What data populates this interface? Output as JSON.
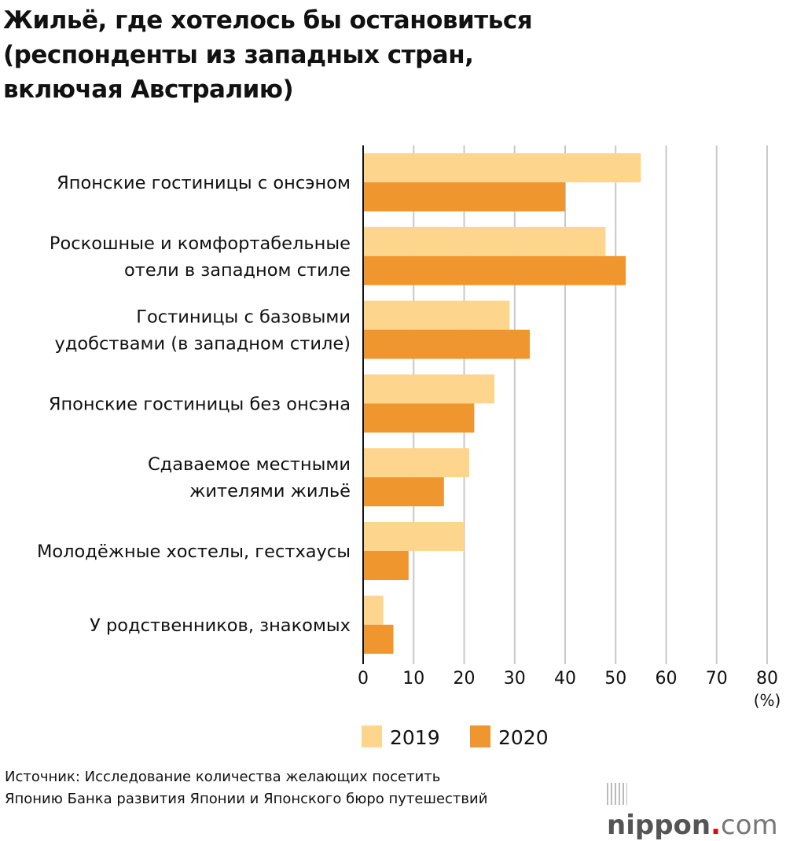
{
  "title_lines": [
    "Жильё, где хотелось бы остановиться",
    "(респонденты из западных стран,",
    "включая Австралию)"
  ],
  "chart_data": {
    "type": "bar",
    "orientation": "horizontal",
    "title": "Жильё, где хотелось бы остановиться (респонденты из западных стран, включая Австралию)",
    "categories": [
      [
        "Японские гостиницы с онсэном"
      ],
      [
        "Роскошные и комфортабельные",
        "отели в западном стиле"
      ],
      [
        "Гостиницы с базовыми",
        "удобствами (в западном стиле)"
      ],
      [
        "Японские гостиницы без онсэна"
      ],
      [
        "Сдаваемое местными",
        "жителями жильё"
      ],
      [
        "Молодёжные хостелы, гестхаусы"
      ],
      [
        "У родственников, знакомых"
      ]
    ],
    "series": [
      {
        "name": "2019",
        "color": "#fdd58c",
        "values": [
          55,
          48,
          29,
          26,
          21,
          20,
          4
        ]
      },
      {
        "name": "2020",
        "color": "#f0962e",
        "values": [
          40,
          52,
          33,
          22,
          16,
          9,
          6
        ]
      }
    ],
    "xlim": [
      0,
      80
    ],
    "xticks": [
      "0",
      "10",
      "20",
      "30",
      "40",
      "50",
      "60",
      "70",
      "80"
    ],
    "xunit": "(%)",
    "grid": true,
    "legend_placement": "bottom"
  },
  "source_lines": [
    "Источник: Исследование количества желающих посетить",
    "Японию Банка развития Японии и Японского бюро путешествий"
  ],
  "logo": {
    "name": "nippon",
    "dot": ".",
    "tld": "com"
  }
}
